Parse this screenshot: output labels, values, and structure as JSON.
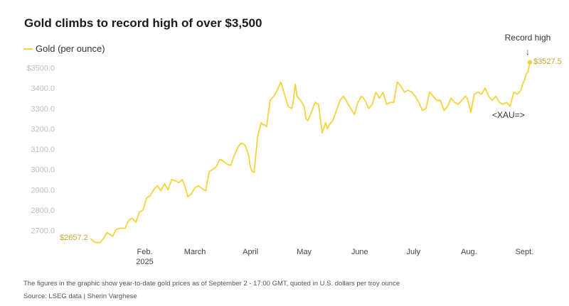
{
  "chart_data": {
    "type": "line",
    "title": "Gold climbs to record high of over $3,500",
    "legend": [
      {
        "name": "Gold (per ounce)",
        "color": "#f5d33c"
      }
    ],
    "colors": {
      "line": "#f5d33c",
      "label": "#c9a227"
    },
    "ylim": [
      2600,
      3560
    ],
    "yticks": [
      {
        "value": 2700,
        "label": "2700.0"
      },
      {
        "value": 2800,
        "label": "2800.0"
      },
      {
        "value": 2900,
        "label": "2900.0"
      },
      {
        "value": 3000,
        "label": "3000.0"
      },
      {
        "value": 3100,
        "label": "3100.0"
      },
      {
        "value": 3200,
        "label": "3200.0"
      },
      {
        "value": 3300,
        "label": "3300.0"
      },
      {
        "value": 3400,
        "label": "3400.0"
      },
      {
        "value": 3500,
        "label": "$3500.0"
      }
    ],
    "xlim": [
      0,
      246
    ],
    "xticks": [
      {
        "day": 31,
        "label": "Feb.",
        "sublabel": "2025"
      },
      {
        "day": 59,
        "label": "March",
        "sublabel": ""
      },
      {
        "day": 90,
        "label": "April",
        "sublabel": ""
      },
      {
        "day": 120,
        "label": "May",
        "sublabel": ""
      },
      {
        "day": 151,
        "label": "June",
        "sublabel": ""
      },
      {
        "day": 181,
        "label": "July",
        "sublabel": ""
      },
      {
        "day": 212,
        "label": "Aug.",
        "sublabel": ""
      },
      {
        "day": 243,
        "label": "Sept.",
        "sublabel": ""
      }
    ],
    "series": [
      {
        "name": "Gold (per ounce)",
        "x": [
          1,
          3,
          6,
          8,
          10,
          13,
          15,
          17,
          20,
          22,
          24,
          26,
          28,
          30,
          32,
          34,
          36,
          38,
          40,
          42,
          44,
          46,
          48,
          50,
          52,
          54,
          55,
          57,
          59,
          61,
          63,
          65,
          67,
          69,
          71,
          73,
          75,
          77,
          79,
          81,
          83,
          85,
          87,
          89,
          90,
          91,
          92,
          94,
          96,
          97,
          98,
          99,
          101,
          103,
          105,
          107,
          109,
          111,
          113,
          114,
          115,
          116,
          118,
          120,
          121,
          122,
          124,
          126,
          128,
          129,
          130,
          132,
          133,
          134,
          136,
          138,
          140,
          142,
          144,
          146,
          148,
          150,
          152,
          154,
          156,
          158,
          160,
          162,
          164,
          166,
          168,
          170,
          172,
          174,
          176,
          178,
          180,
          182,
          184,
          186,
          188,
          190,
          192,
          194,
          196,
          198,
          200,
          202,
          204,
          206,
          208,
          210,
          211,
          212,
          213,
          215,
          217,
          219,
          221,
          223,
          225,
          227,
          229,
          231,
          233,
          235,
          237,
          239,
          241,
          242,
          243,
          244,
          245,
          246
        ],
        "values": [
          2657.2,
          2642,
          2640,
          2660,
          2690,
          2670,
          2705,
          2710,
          2710,
          2750,
          2760,
          2740,
          2790,
          2800,
          2860,
          2870,
          2900,
          2920,
          2895,
          2930,
          2900,
          2950,
          2945,
          2935,
          2950,
          2900,
          2865,
          2880,
          2910,
          2920,
          2905,
          2895,
          2990,
          3000,
          3015,
          3050,
          3040,
          3025,
          3020,
          3070,
          3110,
          3130,
          3120,
          3070,
          3010,
          2990,
          2985,
          3160,
          3230,
          3220,
          3220,
          3210,
          3340,
          3360,
          3390,
          3430,
          3370,
          3310,
          3300,
          3340,
          3420,
          3360,
          3340,
          3310,
          3250,
          3240,
          3280,
          3330,
          3320,
          3250,
          3180,
          3230,
          3200,
          3220,
          3240,
          3290,
          3340,
          3360,
          3330,
          3300,
          3270,
          3330,
          3360,
          3340,
          3300,
          3320,
          3380,
          3350,
          3380,
          3320,
          3330,
          3330,
          3430,
          3410,
          3380,
          3390,
          3380,
          3360,
          3330,
          3290,
          3300,
          3380,
          3360,
          3340,
          3340,
          3290,
          3310,
          3350,
          3330,
          3320,
          3340,
          3360,
          3350,
          3320,
          3280,
          3370,
          3380,
          3370,
          3400,
          3360,
          3340,
          3360,
          3330,
          3320,
          3330,
          3310,
          3380,
          3370,
          3390,
          3420,
          3440,
          3470,
          3480,
          3527.5
        ]
      }
    ],
    "annotations": {
      "record_label": "Record high",
      "arrow": "↓",
      "end_value": "$3527.5",
      "start_value": "$2657.2",
      "ticker": "<XAU=>"
    }
  },
  "footer": {
    "note": "The figures in the graphic show year-to-date gold prices as of September 2 - 17:00 GMT, quoted in U.S. dollars per troy ounce",
    "source": "Source: LSEG data | Sherin Varghese"
  }
}
